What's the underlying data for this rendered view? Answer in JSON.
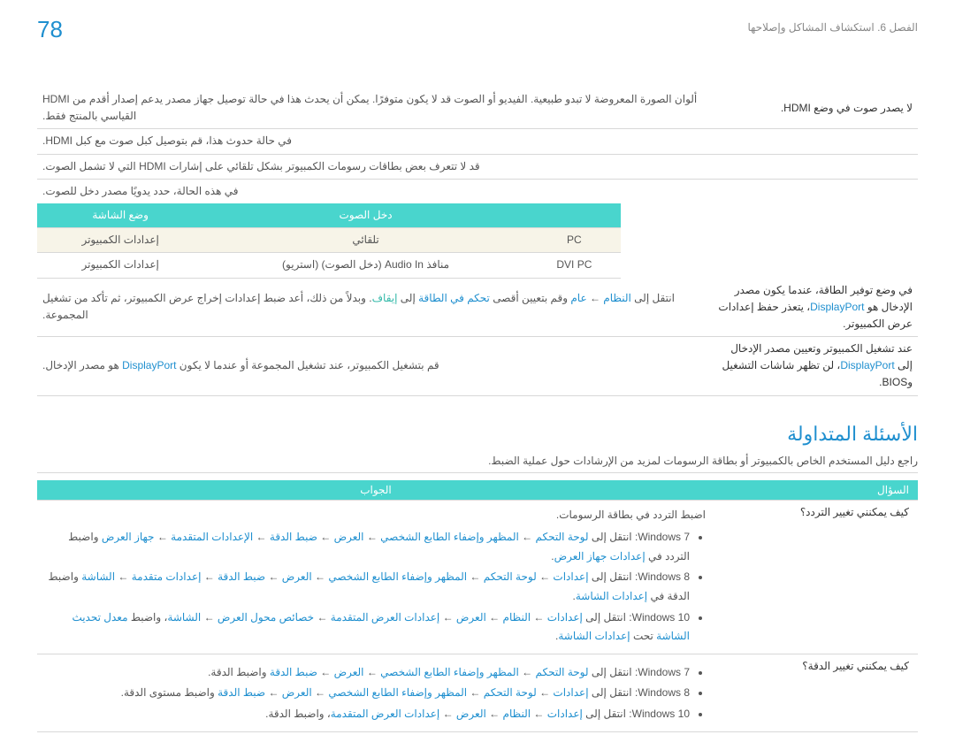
{
  "page_number": "78",
  "chapter": "الفصل 6. استكشاف المشاكل وإصلاحها",
  "hdmi_table": {
    "q": "لا يصدر صوت في وضع HDMI.",
    "lines": [
      "ألوان الصورة المعروضة لا تبدو طبيعية. الفيديو أو الصوت قد لا يكون متوفرًا. يمكن أن يحدث هذا في حالة توصيل جهاز مصدر يدعم إصدار أقدم من HDMI القياسي بالمنتج فقط.",
      "في حالة حدوث هذا، قم بتوصيل كبل صوت مع كبل HDMI.",
      "قد لا تتعرف بعض بطاقات رسومات الكمبيوتر بشكل تلقائي على إشارات HDMI التي لا تشمل الصوت.",
      "في هذه الحالة، حدد يدويًا مصدر دخل للصوت."
    ],
    "table": {
      "headers": [
        "",
        "دخل الصوت",
        "وضع الشاشة"
      ],
      "rows": [
        [
          "PC",
          "تلقائي",
          "إعدادات الكمبيوتر"
        ],
        [
          "DVI PC",
          "منافذ Audio In (دخل الصوت) (استريو)",
          "إعدادات الكمبيوتر"
        ]
      ]
    }
  },
  "dp1": {
    "q_pre": "في وضع توفير الطاقة، عندما يكون مصدر الإدخال هو ",
    "q_hl": "DisplayPort",
    "q_post": "، يتعذر حفظ إعدادات عرض الكمبيوتر.",
    "a_parts": [
      "انتقل إلى ",
      "النظام",
      " ← ",
      "عام",
      " وقم بتعيين أقصى ",
      "تحكم في الطاقة",
      " إلى ",
      "إيقاف",
      ". وبدلاً من ذلك، أعد ضبط إعدادات إخراج عرض الكمبيوتر، ثم تأكد من تشغيل المجموعة."
    ]
  },
  "dp2": {
    "q_pre": "عند تشغيل الكمبيوتر وتعيين مصدر الإدخال إلى ",
    "q_hl": "DisplayPort",
    "q_post": "، لن تظهر شاشات التشغيل وBIOS.",
    "a_parts": [
      "قم بتشغيل الكمبيوتر، عند تشغيل المجموعة أو عندما لا يكون ",
      "DisplayPort",
      " هو مصدر الإدخال."
    ]
  },
  "faq_title": "الأسئلة المتداولة",
  "faq_intro": "راجع دليل المستخدم الخاص بالكمبيوتر أو بطاقة الرسومات لمزيد من الإرشادات حول عملية الضبط.",
  "faq_head_q": "السؤال",
  "faq_head_a": "الجواب",
  "faq1": {
    "q": "كيف يمكنني تغيير التردد؟",
    "lead": "اضبط التردد في بطاقة الرسومات.",
    "win7": [
      "Windows 7: انتقل إلى ",
      "لوحة التحكم",
      " ← ",
      "المظهر وإضفاء الطابع الشخصي",
      " ← ",
      "العرض",
      " ← ",
      "ضبط الدقة",
      " ← ",
      "الإعدادات المتقدمة",
      " ← ",
      "جهاز العرض",
      " واضبط التردد في ",
      "إعدادات جهاز العرض",
      "."
    ],
    "win8": [
      "Windows 8: انتقل إلى ",
      "إعدادات",
      " ← ",
      "لوحة التحكم",
      " ← ",
      "المظهر وإضفاء الطابع الشخصي",
      " ← ",
      "العرض",
      " ← ",
      "ضبط الدقة",
      " ← ",
      "إعدادات متقدمة",
      " ← ",
      "الشاشة",
      " واضبط الدقة في ",
      "إعدادات الشاشة",
      "."
    ],
    "win10": [
      "Windows 10: انتقل إلى ",
      "إعدادات",
      " ← ",
      "النظام",
      " ← ",
      "العرض",
      " ← ",
      "إعدادات العرض المتقدمة",
      " ← ",
      "خصائص محول العرض",
      " ← ",
      "الشاشة",
      "، واضبط ",
      "معدل تحديث الشاشة",
      " تحت ",
      "إعدادات الشاشة",
      "."
    ]
  },
  "faq2": {
    "q": "كيف يمكنني تغيير الدقة؟",
    "win7": [
      "Windows 7: انتقل إلى ",
      "لوحة التحكم",
      " ← ",
      "المظهر وإضفاء الطابع الشخصي",
      " ← ",
      "العرض",
      " ← ",
      "ضبط الدقة",
      " واضبط الدقة."
    ],
    "win8": [
      "Windows 8: انتقل إلى ",
      "إعدادات",
      " ← ",
      "لوحة التحكم",
      " ← ",
      "المظهر وإضفاء الطابع الشخصي",
      " ← ",
      "العرض",
      " ← ",
      "ضبط الدقة",
      " واضبط مستوى الدقة."
    ],
    "win10": [
      "Windows 10: انتقل إلى ",
      "إعدادات",
      " ← ",
      "النظام",
      " ← ",
      "العرض",
      " ← ",
      "إعدادات العرض المتقدمة",
      "، واضبط الدقة."
    ]
  }
}
